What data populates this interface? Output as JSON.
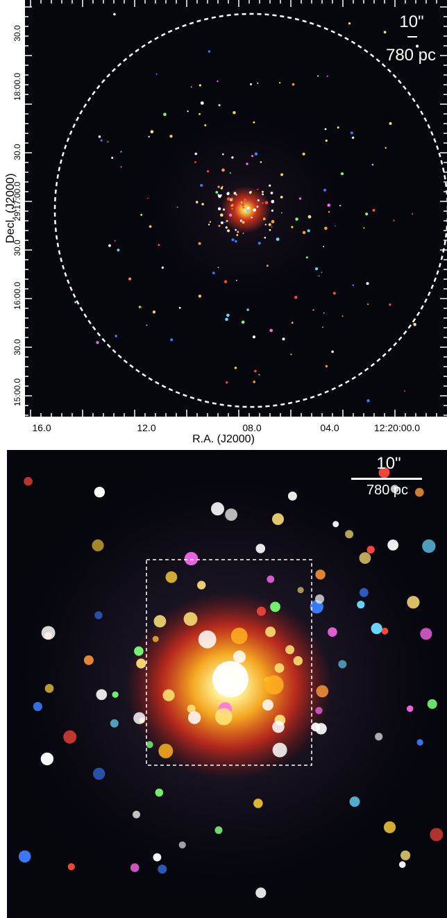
{
  "top_panel": {
    "ylabel": "Decl. (J2000)",
    "xlabel": "R.A. (J2000)",
    "x_ticks": [
      "16.0",
      "12.0",
      "08.0",
      "04.0",
      "12:20:00.0"
    ],
    "y_ticks": [
      "30.0",
      "18:00.0",
      "30.0",
      "29:17:00.0",
      "30.0",
      "16:00.0",
      "30.0",
      "15:00.0"
    ],
    "scale_angle": "10\"",
    "scale_distance": "780 pc"
  },
  "bottom_panel": {
    "scale_angle": "10\"",
    "scale_distance": "780 pc"
  },
  "colors": {
    "background": "#06060d",
    "overlay": "#ffffff",
    "core_red": "#ff3a1a",
    "core_yellow": "#ffe878"
  }
}
